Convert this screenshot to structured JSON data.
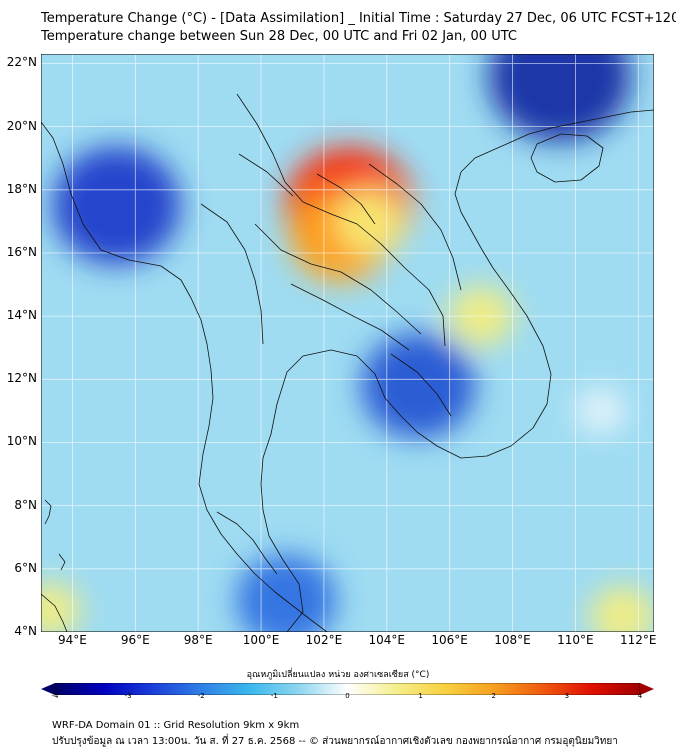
{
  "title_line1": "Temperature Change (°C) - [Data Assimilation] _ Initial Time : Saturday 27 Dec, 06 UTC FCST+120",
  "title_line2": "Temperature change between Sun 28 Dec, 00 UTC and Fri 02 Jan, 00 UTC",
  "map": {
    "lat_labels": [
      "22°N",
      "20°N",
      "18°N",
      "16°N",
      "14°N",
      "12°N",
      "10°N",
      "8°N",
      "6°N",
      "4°N"
    ],
    "lon_labels": [
      "94°E",
      "96°E",
      "98°E",
      "100°E",
      "102°E",
      "104°E",
      "106°E",
      "108°E",
      "110°E",
      "112°E"
    ],
    "lat_range": [
      4,
      22.3
    ],
    "lon_range": [
      93,
      112.5
    ],
    "background_color": "#9fdcf2",
    "field_blobs": [
      {
        "lon": 102.8,
        "lat": 17.5,
        "change_c": 3.0,
        "color": "#ff2200"
      },
      {
        "lon": 102.5,
        "lat": 16.5,
        "change_c": 2.0,
        "color": "#ffa61c"
      },
      {
        "lon": 103.5,
        "lat": 17.0,
        "change_c": 1.0,
        "color": "#f7ee7a"
      },
      {
        "lon": 107.0,
        "lat": 14.0,
        "change_c": 0.8,
        "color": "#f7ee7a"
      },
      {
        "lon": 95.4,
        "lat": 17.5,
        "change_c": -3.0,
        "color": "#1434c8"
      },
      {
        "lon": 105.0,
        "lat": 11.8,
        "change_c": -2.5,
        "color": "#1e50d0"
      },
      {
        "lon": 109.5,
        "lat": 21.6,
        "change_c": -3.5,
        "color": "#0a22a0"
      },
      {
        "lon": 110.8,
        "lat": 11.0,
        "change_c": -0.3,
        "color": "#e6f4fb"
      },
      {
        "lon": 100.8,
        "lat": 5.0,
        "change_c": -2.0,
        "color": "#2a6ae0"
      },
      {
        "lon": 93.3,
        "lat": 4.7,
        "change_c": 0.6,
        "color": "#f7ee7a"
      },
      {
        "lon": 111.5,
        "lat": 4.5,
        "change_c": 0.8,
        "color": "#f7ee7a"
      }
    ]
  },
  "colorbar": {
    "label": "อุณหภูมิเปลี่ยนแปลง หน่วย องศาเซลเซียส (°C)",
    "min": -4,
    "max": 4,
    "ticks": [
      "-4",
      "-3",
      "-2",
      "-1",
      "0",
      "1",
      "2",
      "3",
      "4"
    ],
    "colors": [
      "#000066",
      "#0000c0",
      "#1a3fd8",
      "#2f7fe6",
      "#3ab9ec",
      "#8fd6f0",
      "#ffffff",
      "#f5ef8c",
      "#f8d040",
      "#f5a020",
      "#f05a10",
      "#e01000",
      "#a00000"
    ]
  },
  "footer_line1": "WRF-DA Domain 01 :: Grid Resolution 9km x 9km",
  "footer_line2": "ปรับปรุงข้อมูล ณ เวลา 13:00น. วัน ส. ที่ 27 ธ.ค. 2568 -- © ส่วนพยากรณ์อากาศเชิงตัวเลข กองพยากรณ์อากาศ กรมอุตุนิยมวิทยา"
}
